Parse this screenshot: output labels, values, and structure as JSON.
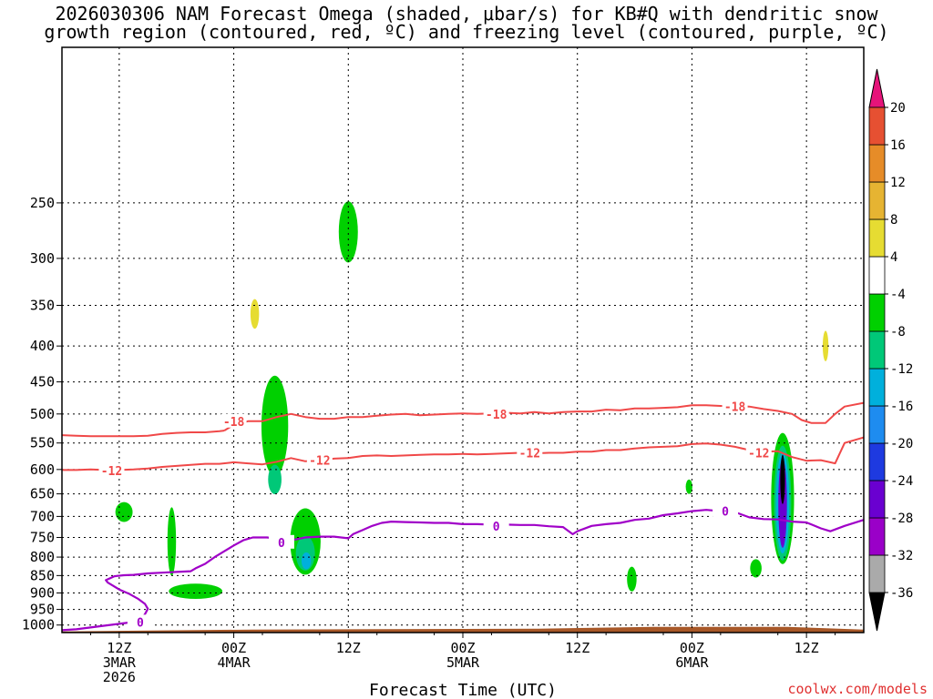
{
  "chart_data": {
    "type": "heatmap",
    "title_line1": "2026030306 NAM Forecast Omega (shaded, μbar/s) for KB#Q with dendritic snow",
    "title_line2": "growth region (contoured, red, ºC) and freezing level (contoured, purple, ºC)",
    "xlabel": "Forecast Time (UTC)",
    "ylabel": "",
    "credit": "coolwx.com/models",
    "x_axis_hours": [
      0,
      84
    ],
    "y_axis_hpa": [
      1025,
      150
    ],
    "y_ticks": [
      {
        "v": 250,
        "label": "250"
      },
      {
        "v": 300,
        "label": "300"
      },
      {
        "v": 350,
        "label": "350"
      },
      {
        "v": 400,
        "label": "400"
      },
      {
        "v": 450,
        "label": "450"
      },
      {
        "v": 500,
        "label": "500"
      },
      {
        "v": 550,
        "label": "550"
      },
      {
        "v": 600,
        "label": "600"
      },
      {
        "v": 650,
        "label": "650"
      },
      {
        "v": 700,
        "label": "700"
      },
      {
        "v": 750,
        "label": "750"
      },
      {
        "v": 800,
        "label": "800"
      },
      {
        "v": 850,
        "label": "850"
      },
      {
        "v": 900,
        "label": "900"
      },
      {
        "v": 950,
        "label": "950"
      },
      {
        "v": 1000,
        "label": "1000"
      }
    ],
    "x_ticks": [
      {
        "h": 6,
        "lines": [
          "12Z",
          "3MAR",
          "2026"
        ]
      },
      {
        "h": 18,
        "lines": [
          "00Z",
          "4MAR"
        ]
      },
      {
        "h": 30,
        "lines": [
          "12Z"
        ]
      },
      {
        "h": 42,
        "lines": [
          "00Z",
          "5MAR"
        ]
      },
      {
        "h": 54,
        "lines": [
          "12Z"
        ]
      },
      {
        "h": 66,
        "lines": [
          "00Z",
          "6MAR"
        ]
      },
      {
        "h": 78,
        "lines": [
          "12Z"
        ]
      }
    ],
    "colorbar": {
      "levels": [
        -36,
        -32,
        -28,
        -24,
        -20,
        -16,
        -12,
        -8,
        -4,
        4,
        8,
        12,
        16,
        20
      ],
      "labels": [
        "-36",
        "-32",
        "-28",
        "-24",
        "-20",
        "-16",
        "-12",
        "-8",
        "-4",
        "4",
        "8",
        "12",
        "16",
        "20"
      ],
      "bins": [
        "#aaaaaa",
        "#9a00c8",
        "#6a00d0",
        "#1e3ae0",
        "#1e8cf0",
        "#00b0dc",
        "#00c878",
        "#00d000",
        "#ffffff",
        "#e6dc32",
        "#e6b432",
        "#e68c28",
        "#e65032"
      ],
      "below_color": "#000000",
      "above_color": "#e6147a"
    },
    "omega_shaded": [
      {
        "name": "omega-upward-patch",
        "c": "#00d000",
        "h": 30,
        "p": 275,
        "hw": 1.0,
        "ph": 55
      },
      {
        "name": "omega-upward-patch",
        "c": "#00d000",
        "h": 6.5,
        "p": 690,
        "hw": 0.9,
        "ph": 45
      },
      {
        "name": "omega-upward-patch",
        "c": "#00d000",
        "h": 11.5,
        "p": 760,
        "hw": 0.45,
        "ph": 170
      },
      {
        "name": "omega-upward-patch",
        "c": "#00d000",
        "h": 14,
        "p": 895,
        "hw": 2.8,
        "ph": 45
      },
      {
        "name": "omega-upward-patch",
        "c": "#00d000",
        "h": 22.3,
        "p": 520,
        "hw": 1.4,
        "ph": 170
      },
      {
        "name": "omega-upward-patch",
        "c": "#00c878",
        "h": 22.3,
        "p": 620,
        "hw": 0.7,
        "ph": 60
      },
      {
        "name": "omega-upward-patch",
        "c": "#00d000",
        "h": 25.5,
        "p": 760,
        "hw": 1.6,
        "ph": 165
      },
      {
        "name": "omega-upward-patch",
        "c": "#00c878",
        "h": 25.5,
        "p": 790,
        "hw": 1.0,
        "ph": 90
      },
      {
        "name": "omega-upward-patch",
        "c": "#00b0dc",
        "h": 25.6,
        "p": 810,
        "hw": 0.5,
        "ph": 45
      },
      {
        "name": "omega-upward-patch",
        "c": "#00d000",
        "h": 59.7,
        "p": 860,
        "hw": 0.5,
        "ph": 70
      },
      {
        "name": "omega-upward-patch",
        "c": "#00d000",
        "h": 65.7,
        "p": 635,
        "hw": 0.35,
        "ph": 30
      },
      {
        "name": "omega-upward-patch",
        "c": "#00d000",
        "h": 72.7,
        "p": 830,
        "hw": 0.6,
        "ph": 50
      },
      {
        "name": "omega-upward-patch",
        "c": "#00d000",
        "h": 75.5,
        "p": 660,
        "hw": 1.2,
        "ph": 280
      },
      {
        "name": "omega-upward-patch",
        "c": "#00c878",
        "h": 75.5,
        "p": 670,
        "hw": 0.9,
        "ph": 250
      },
      {
        "name": "omega-upward-patch",
        "c": "#00b0dc",
        "h": 75.5,
        "p": 670,
        "hw": 0.7,
        "ph": 220
      },
      {
        "name": "omega-upward-patch",
        "c": "#6a00d0",
        "h": 75.5,
        "p": 670,
        "hw": 0.45,
        "ph": 195
      },
      {
        "name": "omega-upward-patch",
        "c": "#000000",
        "h": 75.5,
        "p": 620,
        "hw": 0.25,
        "ph": 100
      },
      {
        "name": "omega-downward-patch",
        "c": "#e6dc32",
        "h": 20.2,
        "p": 360,
        "hw": 0.45,
        "ph": 35
      },
      {
        "name": "omega-downward-patch",
        "c": "#e6dc32",
        "h": 80,
        "p": 400,
        "hw": 0.3,
        "ph": 40
      }
    ],
    "dgz_series": [
      {
        "name": "-18",
        "color": "#f04848",
        "label_at": [
          {
            "h": 18,
            "p": 512
          },
          {
            "h": 45.5,
            "p": 500
          },
          {
            "h": 70.5,
            "p": 488
          }
        ],
        "points": [
          [
            17,
            528
          ],
          [
            18,
            518
          ],
          [
            19.5,
            512
          ],
          [
            21,
            512
          ],
          [
            22.5,
            505
          ],
          [
            24,
            500
          ],
          [
            25.5,
            505
          ],
          [
            27,
            508
          ],
          [
            28.5,
            508
          ],
          [
            30,
            505
          ],
          [
            31.5,
            505
          ],
          [
            33,
            503
          ],
          [
            34.5,
            501
          ],
          [
            36,
            500
          ],
          [
            37.5,
            502
          ],
          [
            39,
            501
          ],
          [
            40.5,
            500
          ],
          [
            42,
            499
          ],
          [
            43.5,
            500
          ],
          [
            45,
            499
          ],
          [
            46.5,
            498
          ],
          [
            48,
            499
          ],
          [
            49.5,
            497
          ],
          [
            51,
            499
          ],
          [
            52.5,
            497
          ],
          [
            54,
            496
          ],
          [
            55.5,
            496
          ],
          [
            57,
            493
          ],
          [
            58.5,
            494
          ],
          [
            60,
            491
          ],
          [
            61.5,
            491
          ],
          [
            63,
            490
          ],
          [
            64.5,
            489
          ],
          [
            66,
            486
          ],
          [
            67.5,
            486
          ],
          [
            69,
            487
          ],
          [
            70.5,
            487
          ],
          [
            72,
            488
          ],
          [
            73.5,
            492
          ],
          [
            75,
            495
          ],
          [
            76.5,
            500
          ],
          [
            77.5,
            510
          ],
          [
            78.5,
            515
          ],
          [
            80,
            515
          ],
          [
            81,
            500
          ],
          [
            82,
            488
          ],
          [
            84,
            482
          ]
        ]
      },
      {
        "name": "-12",
        "color": "#f04848",
        "label_at": [
          {
            "h": 5.2,
            "p": 602
          },
          {
            "h": 27,
            "p": 582
          },
          {
            "h": 49,
            "p": 568
          },
          {
            "h": 73,
            "p": 568
          }
        ],
        "points": [
          [
            0,
            601
          ],
          [
            1.5,
            601
          ],
          [
            3,
            600
          ],
          [
            4.5,
            601
          ],
          [
            6,
            601
          ],
          [
            7.5,
            600
          ],
          [
            9,
            598
          ],
          [
            10.5,
            595
          ],
          [
            12,
            593
          ],
          [
            13.5,
            591
          ],
          [
            15,
            589
          ],
          [
            16.5,
            589
          ],
          [
            18,
            586
          ],
          [
            19.5,
            588
          ],
          [
            21,
            590
          ],
          [
            22.5,
            585
          ],
          [
            24,
            578
          ],
          [
            25.5,
            584
          ],
          [
            27,
            583
          ],
          [
            28.5,
            579
          ],
          [
            30,
            578
          ],
          [
            31.5,
            574
          ],
          [
            33,
            573
          ],
          [
            34.5,
            574
          ],
          [
            36,
            573
          ],
          [
            37.5,
            572
          ],
          [
            39,
            571
          ],
          [
            40.5,
            571
          ],
          [
            42,
            570
          ],
          [
            43.5,
            571
          ],
          [
            45,
            570
          ],
          [
            46.5,
            569
          ],
          [
            48,
            568
          ],
          [
            49.5,
            569
          ],
          [
            51,
            568
          ],
          [
            52.5,
            568
          ],
          [
            54,
            566
          ],
          [
            55.5,
            566
          ],
          [
            57,
            563
          ],
          [
            58.5,
            563
          ],
          [
            60,
            560
          ],
          [
            61.5,
            558
          ],
          [
            63,
            557
          ],
          [
            64.5,
            556
          ],
          [
            66,
            552
          ],
          [
            67.5,
            551
          ],
          [
            69,
            553
          ],
          [
            70.5,
            557
          ],
          [
            72,
            563
          ],
          [
            73.5,
            566
          ],
          [
            75,
            565
          ],
          [
            76.5,
            576
          ],
          [
            78,
            583
          ],
          [
            79.5,
            582
          ],
          [
            81,
            588
          ],
          [
            82,
            550
          ],
          [
            84,
            540
          ]
        ]
      },
      {
        "name": "-18 (west)",
        "color": "#f04848",
        "label_at": [],
        "points": [
          [
            0,
            536
          ],
          [
            1.5,
            537
          ],
          [
            3,
            538
          ],
          [
            4.5,
            538
          ],
          [
            6,
            538
          ],
          [
            7.5,
            538
          ],
          [
            9,
            537
          ],
          [
            10.5,
            534
          ],
          [
            12,
            532
          ],
          [
            13.5,
            531
          ],
          [
            15,
            531
          ],
          [
            16.5,
            529
          ],
          [
            17,
            528
          ]
        ]
      }
    ],
    "freezing_level": {
      "name": "0",
      "color": "#a000c8",
      "label_at": [
        {
          "h": 8.2,
          "p": 990
        },
        {
          "h": 23,
          "p": 762
        },
        {
          "h": 45.5,
          "p": 722
        },
        {
          "h": 69.5,
          "p": 688
        }
      ],
      "points": [
        [
          0,
          1017
        ],
        [
          1.5,
          1014
        ],
        [
          3,
          1008
        ],
        [
          4.5,
          1002
        ],
        [
          6,
          996
        ],
        [
          7.5,
          990
        ],
        [
          8.2,
          985
        ],
        [
          8.7,
          965
        ],
        [
          9,
          948
        ],
        [
          8.7,
          933
        ],
        [
          8,
          918
        ],
        [
          7,
          902
        ],
        [
          6,
          890
        ],
        [
          5.3,
          878
        ],
        [
          4.8,
          870
        ],
        [
          4.6,
          863
        ],
        [
          5,
          858
        ],
        [
          5.5,
          852
        ],
        [
          6.5,
          849
        ],
        [
          7.5,
          848
        ],
        [
          9,
          844
        ],
        [
          10.5,
          842
        ],
        [
          12,
          840
        ],
        [
          13.5,
          838
        ],
        [
          14,
          830
        ],
        [
          15,
          818
        ],
        [
          16,
          800
        ],
        [
          17,
          785
        ],
        [
          18,
          770
        ],
        [
          19,
          757
        ],
        [
          20,
          750
        ],
        [
          21.5,
          750
        ],
        [
          23,
          755
        ],
        [
          24.5,
          755
        ],
        [
          25.5,
          750
        ],
        [
          27,
          748
        ],
        [
          28.5,
          748
        ],
        [
          30,
          752
        ],
        [
          30.5,
          742
        ],
        [
          31.5,
          732
        ],
        [
          32.5,
          722
        ],
        [
          33.5,
          715
        ],
        [
          34.5,
          712
        ],
        [
          36,
          713
        ],
        [
          37.5,
          714
        ],
        [
          39,
          715
        ],
        [
          40.5,
          715
        ],
        [
          42,
          718
        ],
        [
          43.5,
          718
        ],
        [
          45,
          719
        ],
        [
          46.5,
          719
        ],
        [
          48,
          720
        ],
        [
          49.5,
          720
        ],
        [
          51,
          723
        ],
        [
          52.5,
          725
        ],
        [
          53.5,
          742
        ],
        [
          54,
          735
        ],
        [
          55.5,
          722
        ],
        [
          57,
          718
        ],
        [
          58.5,
          715
        ],
        [
          60,
          708
        ],
        [
          61.5,
          705
        ],
        [
          63,
          697
        ],
        [
          64.5,
          693
        ],
        [
          66,
          688
        ],
        [
          67.5,
          685
        ],
        [
          69,
          688
        ],
        [
          70.5,
          690
        ],
        [
          72,
          702
        ],
        [
          73.5,
          706
        ],
        [
          75,
          707
        ],
        [
          76.5,
          712
        ],
        [
          78,
          714
        ],
        [
          79.5,
          728
        ],
        [
          80.5,
          735
        ],
        [
          82,
          722
        ],
        [
          84,
          708
        ]
      ]
    },
    "terrain": {
      "name": "surface",
      "color": "#a85828",
      "pressure_hpa": 1015
    }
  }
}
